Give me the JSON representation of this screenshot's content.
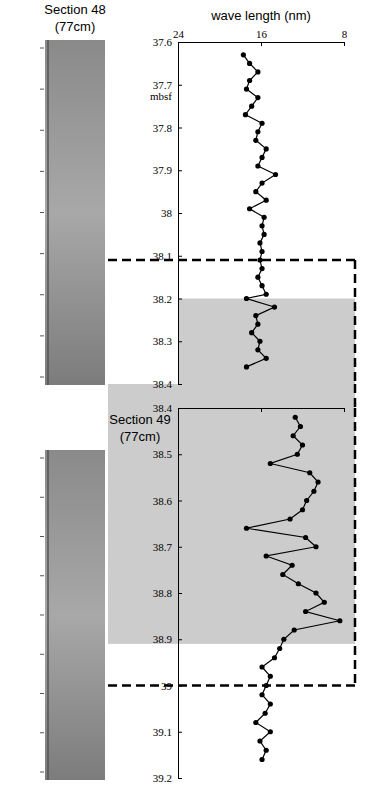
{
  "chart_data": [
    {
      "type": "line",
      "title": "Section 48 (77cm)",
      "xlabel": "wave length (nm)",
      "ylabel": "mbsf",
      "color": "#000000",
      "marker": "circle",
      "tick_labels": true,
      "xlim": [
        24,
        8
      ],
      "xticks": [
        24,
        16,
        8
      ],
      "ylim": [
        37.6,
        38.4
      ],
      "yticks": [
        37.6,
        37.7,
        37.8,
        37.9,
        38,
        38.1,
        38.2,
        38.3,
        38.4
      ],
      "shaded": [
        38.2,
        38.4
      ],
      "dashed_box": [
        38.11,
        38.4
      ],
      "y": [
        37.63,
        37.65,
        37.67,
        37.69,
        37.71,
        37.73,
        37.75,
        37.77,
        37.79,
        37.81,
        37.83,
        37.85,
        37.87,
        37.89,
        37.91,
        37.93,
        37.95,
        37.97,
        37.99,
        38.01,
        38.03,
        38.05,
        38.07,
        38.09,
        38.11,
        38.13,
        38.15,
        38.17,
        38.19,
        38.2,
        38.22,
        38.24,
        38.26,
        38.28,
        38.3,
        38.32,
        38.34,
        38.36
      ],
      "x": [
        17.7,
        17.1,
        16.3,
        17.1,
        17.4,
        16.3,
        16.9,
        17.5,
        15.9,
        16.3,
        16.5,
        15.5,
        15.9,
        16.3,
        14.6,
        15.9,
        16.5,
        15.5,
        17.1,
        15.7,
        15.9,
        15.7,
        16.1,
        15.9,
        16.1,
        15.9,
        16.3,
        15.9,
        15.5,
        17.4,
        14.7,
        16.5,
        16.3,
        16.9,
        16.1,
        16.3,
        15.5,
        17.4
      ]
    },
    {
      "type": "line",
      "title": "Section 49 (77cm)",
      "color": "#000000",
      "marker": "circle",
      "tick_labels": "y",
      "xlim": [
        24,
        8
      ],
      "xticks": [
        24,
        16,
        8
      ],
      "ylim": [
        38.4,
        39.2
      ],
      "yticks": [
        38.4,
        38.5,
        38.6,
        38.7,
        38.8,
        38.9,
        39,
        39.1,
        39.2
      ],
      "shaded": [
        38.4,
        38.91
      ],
      "dashed_box": [
        38.4,
        39.0
      ],
      "y": [
        38.42,
        38.44,
        38.46,
        38.48,
        38.5,
        38.52,
        38.54,
        38.56,
        38.58,
        38.6,
        38.62,
        38.64,
        38.66,
        38.68,
        38.7,
        38.72,
        38.74,
        38.76,
        38.78,
        38.8,
        38.82,
        38.84,
        38.86,
        38.88,
        38.9,
        38.92,
        38.94,
        38.96,
        38.98,
        39.0,
        39.02,
        39.04,
        39.06,
        39.08,
        39.1,
        39.12,
        39.14,
        39.16
      ],
      "x": [
        12.7,
        12.2,
        12.9,
        12.0,
        12.5,
        15.1,
        11.3,
        10.5,
        10.9,
        11.6,
        12.0,
        13.2,
        17.4,
        11.7,
        10.7,
        15.5,
        13.0,
        13.9,
        12.4,
        10.7,
        9.9,
        11.7,
        8.4,
        12.8,
        13.8,
        14.2,
        14.7,
        15.9,
        15.1,
        15.5,
        15.9,
        15.1,
        15.6,
        16.5,
        15.1,
        16.1,
        15.5,
        15.9
      ]
    }
  ]
}
